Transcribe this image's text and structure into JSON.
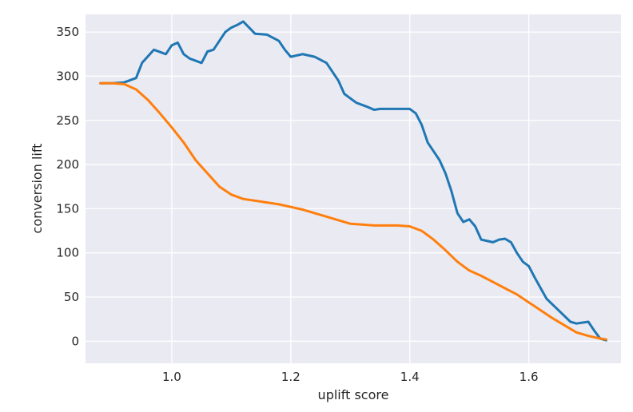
{
  "chart_data": {
    "type": "line",
    "xlabel": "uplift score",
    "ylabel": "conversion lift",
    "xlim": [
      0.855,
      1.755
    ],
    "ylim": [
      -25,
      370
    ],
    "x_ticks": [
      1.0,
      1.2,
      1.4,
      1.6
    ],
    "x_tick_labels": [
      "1.0",
      "1.2",
      "1.4",
      "1.6"
    ],
    "y_ticks": [
      0,
      50,
      100,
      150,
      200,
      250,
      300,
      350
    ],
    "y_tick_labels": [
      "0",
      "50",
      "100",
      "150",
      "200",
      "250",
      "300",
      "350"
    ],
    "grid": true,
    "background": "#eaeaf2",
    "series": [
      {
        "color": "#1f77b4",
        "x": [
          0.88,
          0.9,
          0.92,
          0.94,
          0.95,
          0.97,
          0.99,
          1.0,
          1.01,
          1.02,
          1.03,
          1.05,
          1.06,
          1.07,
          1.08,
          1.09,
          1.1,
          1.11,
          1.12,
          1.13,
          1.14,
          1.16,
          1.18,
          1.19,
          1.2,
          1.22,
          1.24,
          1.26,
          1.28,
          1.29,
          1.31,
          1.33,
          1.34,
          1.35,
          1.38,
          1.4,
          1.41,
          1.42,
          1.43,
          1.45,
          1.46,
          1.47,
          1.48,
          1.49,
          1.5,
          1.51,
          1.52,
          1.54,
          1.55,
          1.56,
          1.57,
          1.58,
          1.59,
          1.6,
          1.61,
          1.62,
          1.63,
          1.65,
          1.67,
          1.68,
          1.7,
          1.71,
          1.72,
          1.73
        ],
        "y": [
          292,
          292,
          293,
          298,
          315,
          330,
          325,
          335,
          338,
          325,
          320,
          315,
          328,
          330,
          340,
          350,
          355,
          358,
          362,
          355,
          348,
          347,
          340,
          330,
          322,
          325,
          322,
          315,
          295,
          280,
          270,
          265,
          262,
          263,
          263,
          263,
          258,
          245,
          225,
          205,
          190,
          170,
          145,
          135,
          138,
          130,
          115,
          112,
          115,
          116,
          112,
          100,
          90,
          85,
          72,
          60,
          48,
          35,
          22,
          20,
          22,
          12,
          3,
          1
        ]
      },
      {
        "color": "#ff7f0e",
        "x": [
          0.88,
          0.9,
          0.92,
          0.94,
          0.96,
          0.98,
          1.0,
          1.02,
          1.04,
          1.06,
          1.08,
          1.1,
          1.12,
          1.14,
          1.16,
          1.18,
          1.2,
          1.22,
          1.24,
          1.26,
          1.28,
          1.3,
          1.32,
          1.34,
          1.36,
          1.38,
          1.4,
          1.42,
          1.44,
          1.46,
          1.48,
          1.5,
          1.52,
          1.54,
          1.56,
          1.58,
          1.6,
          1.62,
          1.64,
          1.66,
          1.68,
          1.7,
          1.72,
          1.73
        ],
        "y": [
          292,
          292,
          291,
          285,
          273,
          258,
          242,
          225,
          205,
          190,
          175,
          166,
          161,
          159,
          157,
          155,
          152,
          149,
          145,
          141,
          137,
          133,
          132,
          131,
          131,
          131,
          130,
          125,
          115,
          103,
          90,
          80,
          74,
          67,
          60,
          53,
          44,
          35,
          26,
          18,
          10,
          6,
          3,
          2
        ]
      }
    ]
  }
}
